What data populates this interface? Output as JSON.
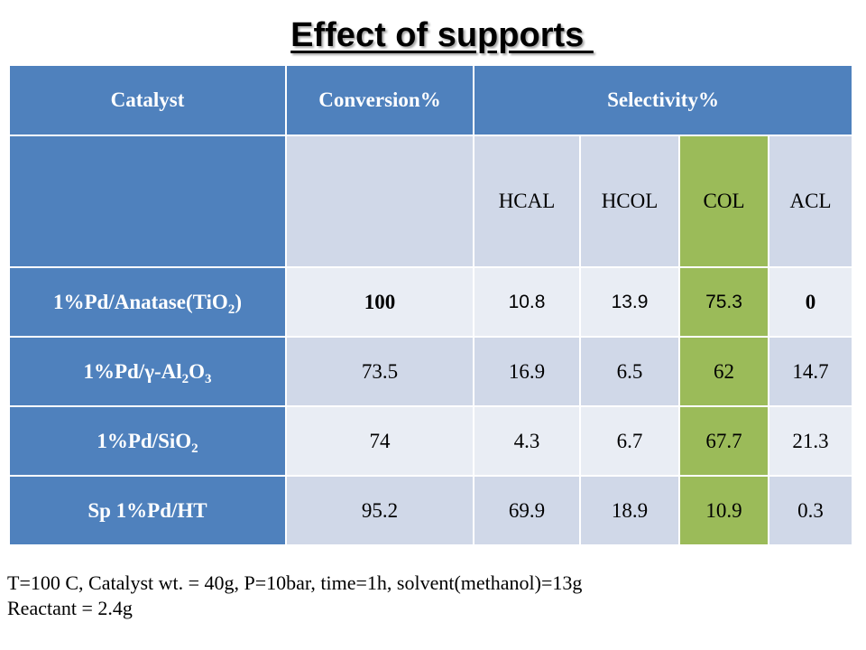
{
  "title": "Effect of supports ",
  "table": {
    "headers": {
      "catalyst": "Catalyst",
      "conversion": "Conversion%",
      "selectivity": "Selectivity%"
    },
    "subheaders": [
      "HCAL",
      "HCOL",
      "COL",
      "ACL"
    ],
    "rows": [
      {
        "catalyst_prefix": "1%Pd/Anatase(TiO",
        "catalyst_sub": "2",
        "catalyst_suffix": ")",
        "conversion": "100",
        "hcal": "10.8",
        "hcol": "13.9",
        "col": "75.3",
        "acl": "0"
      },
      {
        "catalyst_prefix": "1%Pd/γ-Al",
        "catalyst_sub": "2",
        "catalyst_mid": "O",
        "catalyst_sub2": "3",
        "conversion": "73.5",
        "hcal": "16.9",
        "hcol": "6.5",
        "col": "62",
        "acl": "14.7"
      },
      {
        "catalyst_prefix": "1%Pd/SiO",
        "catalyst_sub": "2",
        "conversion": "74",
        "hcal": "4.3",
        "hcol": "6.7",
        "col": "67.7",
        "acl": "21.3"
      },
      {
        "catalyst_prefix": "Sp 1%Pd/HT",
        "conversion": "95.2",
        "hcal": "69.9",
        "hcol": "18.9",
        "col": "10.9",
        "acl": "0.3"
      }
    ]
  },
  "footnote": {
    "line1": "T=100 C, Catalyst wt. = 40g, P=10bar, time=1h, solvent(methanol)=13g",
    "line2": "Reactant = 2.4g"
  },
  "colors": {
    "header_blue": "#4f81bd",
    "light_blue": "#d0d8e8",
    "lighter_blue": "#e9edf4",
    "col_green": "#9bbb59"
  }
}
